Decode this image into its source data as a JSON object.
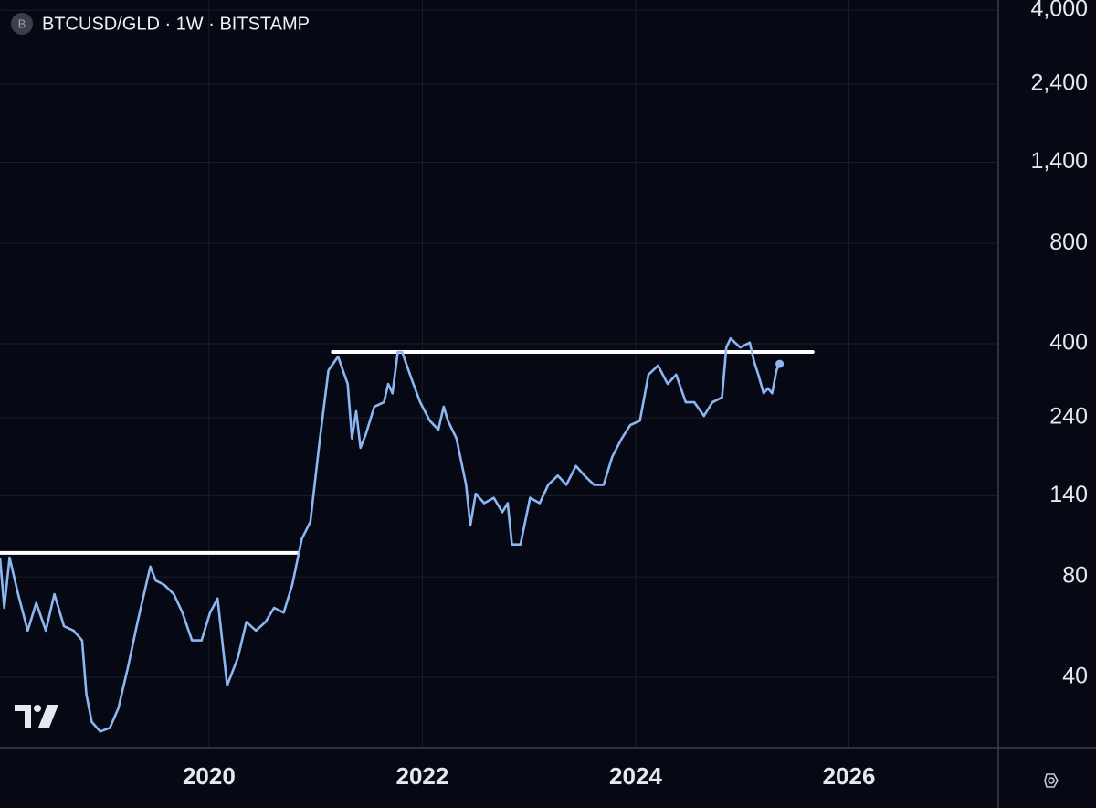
{
  "chart_data": {
    "type": "line",
    "title": "BTCUSD/GLD · 1W · BITSTAMP",
    "symbol_badge": "B",
    "log_scale": true,
    "grid": true,
    "xlim": [
      2018.04,
      2027.4
    ],
    "xticks": [
      2020,
      2022,
      2024,
      2026
    ],
    "ylim": [
      24.6,
      4290
    ],
    "yticks": [
      40,
      80,
      140,
      240,
      400,
      800,
      {
        "value": 1400,
        "label": "1,400"
      },
      {
        "value": 2400,
        "label": "2,400"
      },
      {
        "value": 4000,
        "label": "4,000"
      }
    ],
    "series": [
      {
        "color": "#8db6f2",
        "x": [
          2018.04,
          2018.08,
          2018.13,
          2018.21,
          2018.3,
          2018.38,
          2018.47,
          2018.55,
          2018.64,
          2018.73,
          2018.81,
          2018.85,
          2018.9,
          2018.98,
          2019.07,
          2019.15,
          2019.24,
          2019.33,
          2019.41,
          2019.45,
          2019.5,
          2019.58,
          2019.67,
          2019.75,
          2019.84,
          2019.93,
          2020.01,
          2020.08,
          2020.17,
          2020.27,
          2020.35,
          2020.44,
          2020.53,
          2020.61,
          2020.7,
          2020.78,
          2020.87,
          2020.95,
          2021.04,
          2021.12,
          2021.21,
          2021.3,
          2021.34,
          2021.38,
          2021.42,
          2021.47,
          2021.55,
          2021.64,
          2021.68,
          2021.72,
          2021.77,
          2021.81,
          2021.9,
          2021.98,
          2022.07,
          2022.15,
          2022.2,
          2022.24,
          2022.32,
          2022.41,
          2022.45,
          2022.5,
          2022.58,
          2022.67,
          2022.75,
          2022.8,
          2022.84,
          2022.92,
          2023.01,
          2023.1,
          2023.18,
          2023.27,
          2023.35,
          2023.44,
          2023.52,
          2023.61,
          2023.7,
          2023.78,
          2023.87,
          2023.95,
          2024.04,
          2024.12,
          2024.21,
          2024.3,
          2024.38,
          2024.47,
          2024.55,
          2024.64,
          2024.72,
          2024.81,
          2024.85,
          2024.89,
          2024.98,
          2025.07,
          2025.11,
          2025.15,
          2025.2,
          2025.24,
          2025.28,
          2025.32,
          2025.35
        ],
        "values": [
          91.4,
          64.6,
          91.4,
          71.0,
          55.2,
          66.8,
          55.2,
          71.0,
          56.9,
          55.2,
          51.6,
          35.5,
          29.4,
          27.5,
          28.2,
          32.3,
          42.9,
          58.6,
          75.7,
          85.9,
          78.0,
          75.7,
          71.0,
          62.5,
          51.6,
          51.6,
          62.5,
          68.9,
          37.8,
          45.7,
          58.6,
          55.2,
          58.6,
          64.6,
          62.5,
          75.7,
          104,
          117,
          208,
          333,
          366,
          303,
          208,
          251,
          195,
          214,
          259,
          267,
          303,
          284,
          378,
          378,
          313,
          267,
          235,
          221,
          259,
          235,
          208,
          151,
          114,
          142,
          133,
          138,
          125,
          133,
          100,
          100,
          138,
          133,
          151,
          161,
          151,
          172,
          161,
          151,
          151,
          183,
          208,
          228,
          235,
          323,
          344,
          303,
          323,
          267,
          267,
          243,
          267,
          276,
          390,
          415,
          390,
          403,
          354,
          323,
          284,
          294,
          284,
          333,
          348
        ]
      }
    ],
    "last_marker": true,
    "hlines": [
      {
        "y": 94.4,
        "x": [
          2018.04,
          2020.84
        ],
        "color": "#ffffff"
      },
      {
        "y": 378,
        "x": [
          2021.16,
          2025.66
        ],
        "color": "#ffffff"
      }
    ]
  }
}
